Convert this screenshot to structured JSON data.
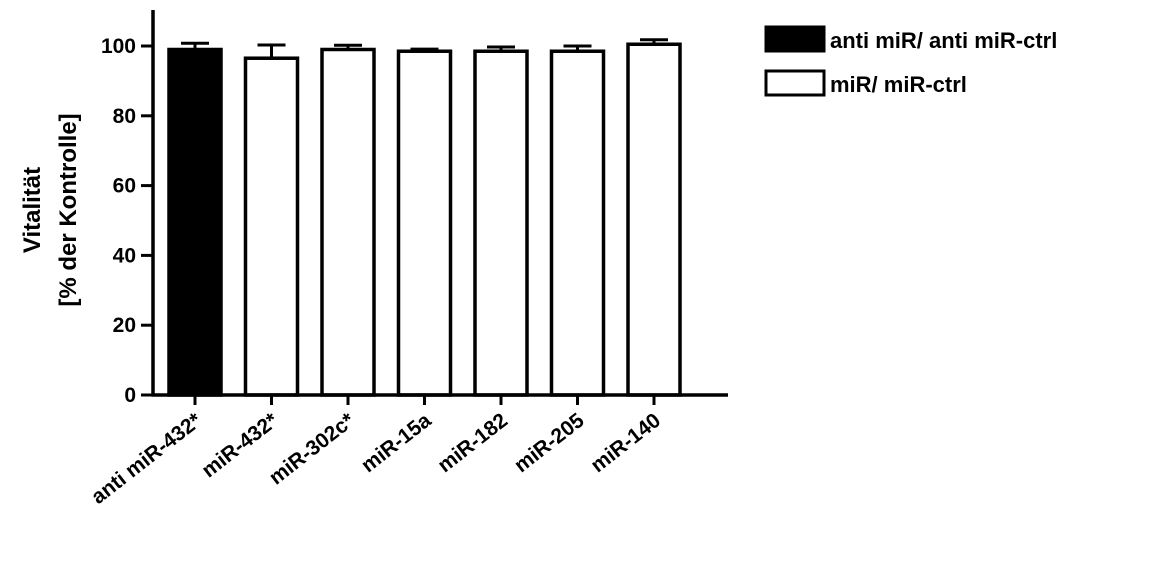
{
  "chart_data": {
    "type": "bar",
    "title": "",
    "xlabel": "",
    "ylabel_lines": [
      "Vitalität",
      "[% der Kontrolle]"
    ],
    "ylim": [
      0,
      110
    ],
    "yticks": [
      0,
      20,
      40,
      60,
      80,
      100
    ],
    "grid": false,
    "legend_position": "top-right",
    "categories": [
      "anti miR-432*",
      "miR-432*",
      "miR-302c*",
      "miR-15a",
      "miR-182",
      "miR-205",
      "miR-140"
    ],
    "values": [
      99,
      96.5,
      99,
      98.5,
      98.5,
      98.5,
      100.5
    ],
    "errors": [
      1.8,
      3.8,
      1.2,
      0.6,
      1.2,
      1.5,
      1.3
    ],
    "bar_groups": [
      "anti miR/ anti miR-ctrl",
      "miR/ miR-ctrl",
      "miR/ miR-ctrl",
      "miR/ miR-ctrl",
      "miR/ miR-ctrl",
      "miR/ miR-ctrl",
      "miR/ miR-ctrl"
    ],
    "legend": [
      {
        "label": "anti miR/ anti miR-ctrl",
        "fill": "#000000"
      },
      {
        "label": "miR/ miR-ctrl",
        "fill": "#ffffff"
      }
    ],
    "colors": {
      "axis": "#000000",
      "filled": "#000000",
      "open": "#ffffff"
    }
  }
}
